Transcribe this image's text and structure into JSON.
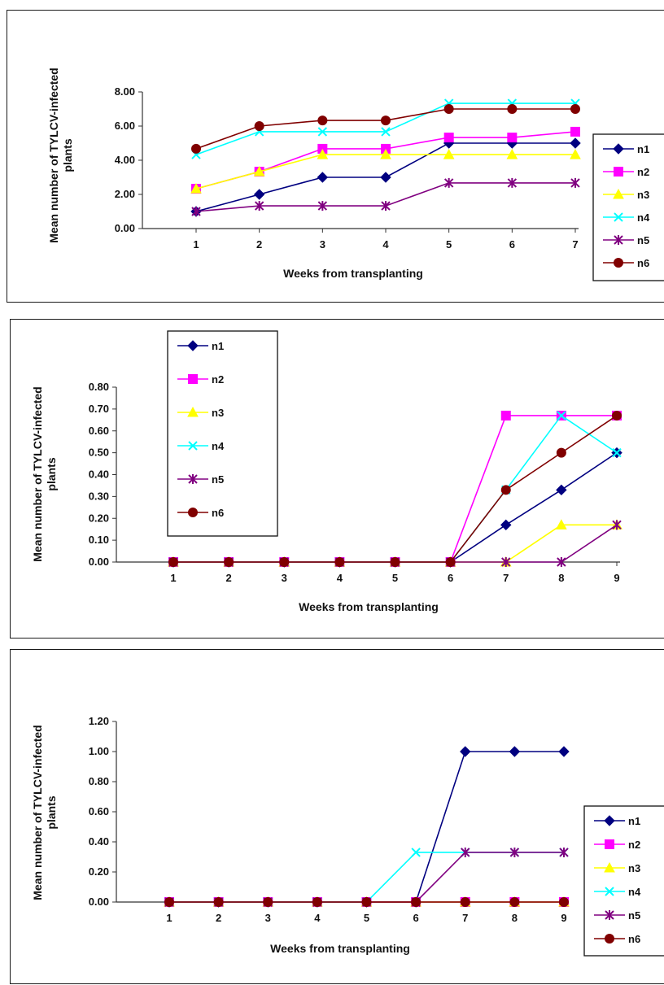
{
  "chart_data": [
    {
      "type": "line",
      "xlabel": "Weeks from transplanting",
      "ylabel": "Mean number of TYLCV-infected plants",
      "x": [
        1,
        2,
        3,
        4,
        5,
        6,
        7
      ],
      "y_ticks": [
        "0.00",
        "2.00",
        "4.00",
        "6.00",
        "8.00"
      ],
      "ylim": [
        0,
        8
      ],
      "grid": false,
      "legend_position": "right",
      "series": [
        {
          "name": "n1",
          "color": "#000080",
          "marker": "diamond",
          "values": [
            1.0,
            2.0,
            3.0,
            3.0,
            5.0,
            5.0,
            5.0
          ]
        },
        {
          "name": "n2",
          "color": "#ff00ff",
          "marker": "square",
          "values": [
            2.33,
            3.33,
            4.67,
            4.67,
            5.33,
            5.33,
            5.67
          ]
        },
        {
          "name": "n3",
          "color": "#ffff00",
          "marker": "triangle",
          "values": [
            2.33,
            3.33,
            4.33,
            4.33,
            4.33,
            4.33,
            4.33
          ]
        },
        {
          "name": "n4",
          "color": "#00ffff",
          "marker": "x",
          "values": [
            4.33,
            5.67,
            5.67,
            5.67,
            7.33,
            7.33,
            7.33
          ]
        },
        {
          "name": "n5",
          "color": "#800080",
          "marker": "star",
          "values": [
            1.0,
            1.33,
            1.33,
            1.33,
            2.67,
            2.67,
            2.67
          ]
        },
        {
          "name": "n6",
          "color": "#800000",
          "marker": "circle",
          "values": [
            4.67,
            6.0,
            6.33,
            6.33,
            7.0,
            7.0,
            7.0
          ]
        }
      ]
    },
    {
      "type": "line",
      "xlabel": "Weeks from transplanting",
      "ylabel": "Mean number of TYLCV-infected plants",
      "x": [
        1,
        2,
        3,
        4,
        5,
        6,
        7,
        8,
        9
      ],
      "y_ticks": [
        "0.00",
        "0.10",
        "0.20",
        "0.30",
        "0.40",
        "0.50",
        "0.60",
        "0.70",
        "0.80"
      ],
      "ylim": [
        0,
        0.8
      ],
      "grid": false,
      "legend_position": "top-left",
      "series": [
        {
          "name": "n1",
          "color": "#000080",
          "marker": "diamond",
          "values": [
            0,
            0,
            0,
            0,
            0,
            0,
            0.17,
            0.33,
            0.5
          ]
        },
        {
          "name": "n2",
          "color": "#ff00ff",
          "marker": "square",
          "values": [
            0,
            0,
            0,
            0,
            0,
            0,
            0.67,
            0.67,
            0.67
          ]
        },
        {
          "name": "n3",
          "color": "#ffff00",
          "marker": "triangle",
          "values": [
            0,
            0,
            0,
            0,
            0,
            0,
            0,
            0.17,
            0.17
          ]
        },
        {
          "name": "n4",
          "color": "#00ffff",
          "marker": "x",
          "values": [
            0,
            0,
            0,
            0,
            0,
            0,
            0.33,
            0.67,
            0.5
          ]
        },
        {
          "name": "n5",
          "color": "#800080",
          "marker": "star",
          "values": [
            0,
            0,
            0,
            0,
            0,
            0,
            0,
            0,
            0.17
          ]
        },
        {
          "name": "n6",
          "color": "#800000",
          "marker": "circle",
          "values": [
            0,
            0,
            0,
            0,
            0,
            0,
            0.33,
            0.5,
            0.67
          ]
        }
      ]
    },
    {
      "type": "line",
      "xlabel": "Weeks from transplanting",
      "ylabel": "Mean number of TYLCV-infected plants",
      "x": [
        1,
        2,
        3,
        4,
        5,
        6,
        7,
        8,
        9
      ],
      "y_ticks": [
        "0.00",
        "0.20",
        "0.40",
        "0.60",
        "0.80",
        "1.00",
        "1.20"
      ],
      "ylim": [
        0,
        1.2
      ],
      "grid": false,
      "legend_position": "right",
      "series": [
        {
          "name": "n1",
          "color": "#000080",
          "marker": "diamond",
          "values": [
            0,
            0,
            0,
            0,
            0,
            0,
            1.0,
            1.0,
            1.0
          ]
        },
        {
          "name": "n2",
          "color": "#ff00ff",
          "marker": "square",
          "values": [
            0,
            0,
            0,
            0,
            0,
            0,
            0,
            0,
            0
          ]
        },
        {
          "name": "n3",
          "color": "#ffff00",
          "marker": "triangle",
          "values": [
            0,
            0,
            0,
            0,
            0,
            0,
            0,
            0,
            0
          ]
        },
        {
          "name": "n4",
          "color": "#00ffff",
          "marker": "x",
          "values": [
            0,
            0,
            0,
            0,
            0,
            0.33,
            0.33,
            0.33,
            0.33
          ]
        },
        {
          "name": "n5",
          "color": "#800080",
          "marker": "star",
          "values": [
            0,
            0,
            0,
            0,
            0,
            0,
            0.33,
            0.33,
            0.33
          ]
        },
        {
          "name": "n6",
          "color": "#800000",
          "marker": "circle",
          "values": [
            0,
            0,
            0,
            0,
            0,
            0,
            0,
            0,
            0
          ]
        }
      ]
    }
  ]
}
